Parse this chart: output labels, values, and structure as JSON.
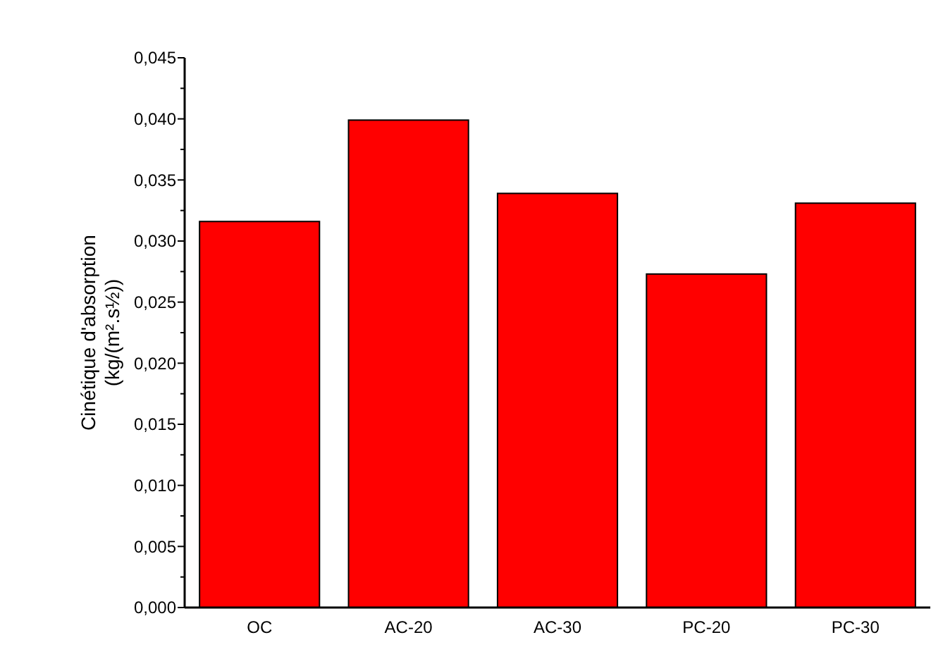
{
  "chart_data": {
    "type": "bar",
    "ylabel": "Cinétique d'absorption\n(kg/(m².s½))",
    "categories": [
      "OC",
      "AC-20",
      "AC-30",
      "PC-20",
      "PC-30"
    ],
    "values": [
      0.0316,
      0.0399,
      0.0339,
      0.0273,
      0.0331
    ],
    "color": "#ff0000",
    "ylim": [
      0,
      0.045
    ],
    "yticks": [
      {
        "value": 0,
        "label": "0,000"
      },
      {
        "value": 0.0025,
        "label": null
      },
      {
        "value": 0.005,
        "label": "0,005"
      },
      {
        "value": 0.0075,
        "label": null
      },
      {
        "value": 0.01,
        "label": "0,010"
      },
      {
        "value": 0.0125,
        "label": null
      },
      {
        "value": 0.015,
        "label": "0,015"
      },
      {
        "value": 0.0175,
        "label": null
      },
      {
        "value": 0.02,
        "label": "0,020"
      },
      {
        "value": 0.0225,
        "label": null
      },
      {
        "value": 0.025,
        "label": "0,025"
      },
      {
        "value": 0.0275,
        "label": null
      },
      {
        "value": 0.03,
        "label": "0,030"
      },
      {
        "value": 0.0325,
        "label": null
      },
      {
        "value": 0.035,
        "label": "0,035"
      },
      {
        "value": 0.0375,
        "label": null
      },
      {
        "value": 0.04,
        "label": "0,040"
      },
      {
        "value": 0.0425,
        "label": null
      },
      {
        "value": 0.045,
        "label": "0,045"
      }
    ],
    "grid": false
  }
}
